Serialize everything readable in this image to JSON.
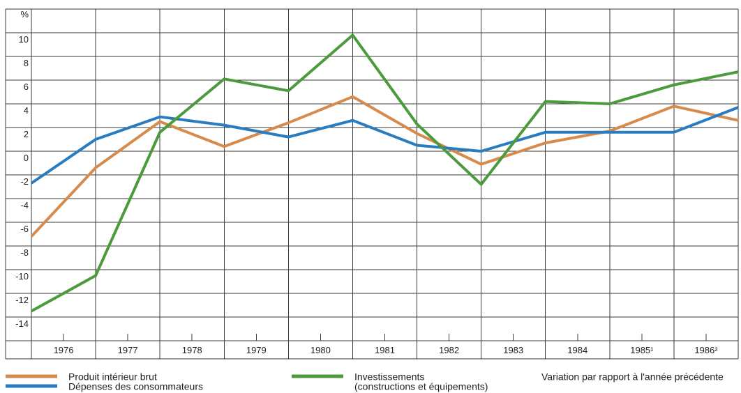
{
  "chart_data": {
    "type": "line",
    "ylabel": "%",
    "xlabel": "",
    "ylim": [
      -16,
      12
    ],
    "xlim": [
      1975,
      1986
    ],
    "y_ticks": [
      {
        "value": 10,
        "label": "10"
      },
      {
        "value": 8,
        "label": "8"
      },
      {
        "value": 6,
        "label": "6"
      },
      {
        "value": 4,
        "label": "4"
      },
      {
        "value": 2,
        "label": "2"
      },
      {
        "value": 0,
        "label": "0"
      },
      {
        "value": -2,
        "label": "-2"
      },
      {
        "value": -4,
        "label": "-4"
      },
      {
        "value": -6,
        "label": "-6"
      },
      {
        "value": -8,
        "label": "-8"
      },
      {
        "value": -10,
        "label": "-10"
      },
      {
        "value": -12,
        "label": "-12"
      },
      {
        "value": -14,
        "label": "-14"
      }
    ],
    "x_tick_labels": [
      {
        "year": 1976,
        "label": "1976"
      },
      {
        "year": 1977,
        "label": "1977"
      },
      {
        "year": 1978,
        "label": "1978"
      },
      {
        "year": 1979,
        "label": "1979"
      },
      {
        "year": 1980,
        "label": "1980"
      },
      {
        "year": 1981,
        "label": "1981"
      },
      {
        "year": 1982,
        "label": "1982"
      },
      {
        "year": 1983,
        "label": "1983"
      },
      {
        "year": 1984,
        "label": "1984"
      },
      {
        "year": 1985,
        "label": "1985¹"
      },
      {
        "year": 1986,
        "label": "1986²"
      }
    ],
    "x": [
      1975,
      1976,
      1977,
      1978,
      1979,
      1980,
      1981,
      1982,
      1983,
      1984,
      1985,
      1986
    ],
    "series": [
      {
        "name": "Produit intérieur brut",
        "color": "#d68b4c",
        "values": [
          -7.2,
          -1.4,
          2.5,
          0.4,
          2.4,
          4.6,
          1.5,
          -1.1,
          0.7,
          1.7,
          3.8,
          2.6
        ]
      },
      {
        "name": "Dépenses des consommateurs",
        "color": "#2a7cc0",
        "values": [
          -2.7,
          1.0,
          2.9,
          2.2,
          1.2,
          2.6,
          0.5,
          0.0,
          1.6,
          1.6,
          1.6,
          3.7
        ]
      },
      {
        "name": "Investissements",
        "name_detail": "(constructions et équipements)",
        "color": "#4b9b3c",
        "values": [
          -13.5,
          -10.5,
          1.6,
          6.1,
          5.1,
          9.8,
          2.3,
          -2.8,
          4.2,
          4.0,
          5.6,
          6.7
        ]
      }
    ],
    "note": "Variation par rapport à l'année précédente",
    "grid": true,
    "legend": "bottom"
  }
}
